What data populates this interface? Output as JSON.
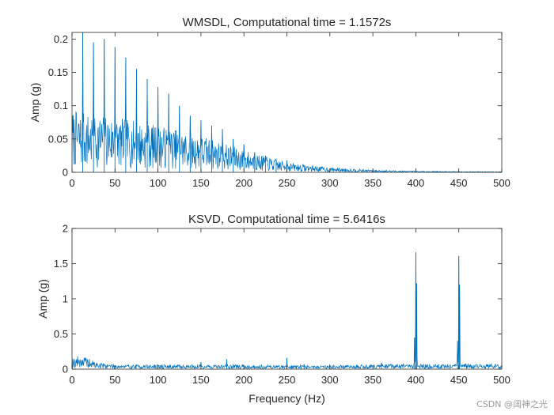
{
  "chart_data": [
    {
      "type": "line",
      "title": "WMSDL, Computational time = 1.1572s",
      "xlabel": "",
      "ylabel": "Amp (g)",
      "xlim": [
        0,
        500
      ],
      "ylim": [
        0,
        0.21
      ],
      "xticks": [
        0,
        50,
        100,
        150,
        200,
        250,
        300,
        350,
        400,
        450,
        500
      ],
      "yticks": [
        0,
        0.05,
        0.1,
        0.15,
        0.2
      ],
      "ytick_labels": [
        "0",
        "0.05",
        "0.1",
        "0.15",
        "0.2"
      ],
      "grid": false,
      "color": "#0072BD",
      "peaks": [
        {
          "x": 12.5,
          "y": 0.21
        },
        {
          "x": 25,
          "y": 0.195
        },
        {
          "x": 37.5,
          "y": 0.2
        },
        {
          "x": 50,
          "y": 0.188
        },
        {
          "x": 62.5,
          "y": 0.172
        },
        {
          "x": 75,
          "y": 0.155
        },
        {
          "x": 87.5,
          "y": 0.14
        },
        {
          "x": 100,
          "y": 0.128
        },
        {
          "x": 112.5,
          "y": 0.118
        },
        {
          "x": 125,
          "y": 0.1
        },
        {
          "x": 137.5,
          "y": 0.085
        },
        {
          "x": 150,
          "y": 0.078
        },
        {
          "x": 162.5,
          "y": 0.07
        },
        {
          "x": 175,
          "y": 0.065
        },
        {
          "x": 187.5,
          "y": 0.05
        },
        {
          "x": 200,
          "y": 0.042
        },
        {
          "x": 212.5,
          "y": 0.03
        },
        {
          "x": 225,
          "y": 0.025
        },
        {
          "x": 237.5,
          "y": 0.02
        },
        {
          "x": 250,
          "y": 0.018
        }
      ],
      "noise_profile": [
        {
          "x": 0,
          "y": 0.05
        },
        {
          "x": 50,
          "y": 0.045
        },
        {
          "x": 100,
          "y": 0.038
        },
        {
          "x": 150,
          "y": 0.03
        },
        {
          "x": 200,
          "y": 0.018
        },
        {
          "x": 250,
          "y": 0.008
        },
        {
          "x": 300,
          "y": 0.004
        },
        {
          "x": 350,
          "y": 0.002
        },
        {
          "x": 400,
          "y": 0.001
        },
        {
          "x": 500,
          "y": 0.0005
        }
      ]
    },
    {
      "type": "line",
      "title": "KSVD, Computational time = 5.6416s",
      "xlabel": "Frequency (Hz)",
      "ylabel": "Amp (g)",
      "xlim": [
        0,
        500
      ],
      "ylim": [
        0,
        2
      ],
      "xticks": [
        0,
        50,
        100,
        150,
        200,
        250,
        300,
        350,
        400,
        450,
        500
      ],
      "yticks": [
        0,
        0.5,
        1,
        1.5,
        2
      ],
      "ytick_labels": [
        "0",
        "0.5",
        "1",
        "1.5",
        "2"
      ],
      "grid": false,
      "color": "#0072BD",
      "peaks": [
        {
          "x": 400,
          "y": 1.66
        },
        {
          "x": 400.8,
          "y": 1.22
        },
        {
          "x": 398.5,
          "y": 0.45
        },
        {
          "x": 450,
          "y": 1.61
        },
        {
          "x": 450.8,
          "y": 1.2
        },
        {
          "x": 448.5,
          "y": 0.4
        },
        {
          "x": 250,
          "y": 0.16
        },
        {
          "x": 180,
          "y": 0.14
        },
        {
          "x": 150,
          "y": 0.1
        },
        {
          "x": 360,
          "y": 0.09
        },
        {
          "x": 270,
          "y": 0.07
        },
        {
          "x": 300,
          "y": 0.06
        },
        {
          "x": 100,
          "y": 0.05
        },
        {
          "x": 200,
          "y": 0.05
        }
      ],
      "noise_profile": [
        {
          "x": 0,
          "y": 0.09
        },
        {
          "x": 10,
          "y": 0.11
        },
        {
          "x": 30,
          "y": 0.05
        },
        {
          "x": 60,
          "y": 0.035
        },
        {
          "x": 150,
          "y": 0.035
        },
        {
          "x": 300,
          "y": 0.03
        },
        {
          "x": 380,
          "y": 0.04
        },
        {
          "x": 500,
          "y": 0.04
        }
      ]
    }
  ],
  "watermark": "CSDN @阔神之光"
}
